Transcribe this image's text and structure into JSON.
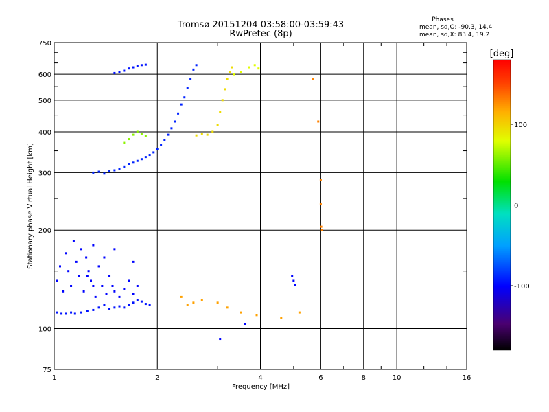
{
  "chart_data": {
    "type": "scatter",
    "title": "Tromsø 20151204 03:58:00-03:59:43",
    "subtitle": "RwPretec (8p)",
    "stats": {
      "heading": "Phases",
      "line_o": "mean, sd,O: -90.3, 14.4",
      "line_x": "mean, sd,X:  83.4, 19.2"
    },
    "xlabel": "Frequency [MHz]",
    "ylabel": "Stationary phase Virtual Height [km]",
    "x_scale": "log",
    "y_scale": "log",
    "xlim": [
      1,
      16
    ],
    "ylim": [
      75,
      750
    ],
    "x_ticks": [
      1,
      2,
      4,
      6,
      8,
      10,
      16
    ],
    "x_tick_labels": [
      "1",
      "2",
      "4",
      "6",
      "8",
      "10",
      "16"
    ],
    "y_ticks": [
      75,
      100,
      200,
      300,
      400,
      500,
      600,
      750
    ],
    "y_tick_labels": [
      "75",
      "100",
      "200",
      "300",
      "400",
      "500",
      "600",
      "750"
    ],
    "grid": true,
    "colorbar": {
      "label": "[deg]",
      "range": [
        -180,
        180
      ],
      "ticks": [
        100,
        0,
        -100
      ],
      "tick_labels": [
        "100",
        "0",
        "-100"
      ]
    },
    "series": [
      {
        "values": [
          [
            1.02,
            112
          ],
          [
            1.05,
            111
          ],
          [
            1.08,
            111
          ],
          [
            1.12,
            112
          ],
          [
            1.15,
            111
          ],
          [
            1.2,
            112
          ],
          [
            1.25,
            113
          ],
          [
            1.3,
            114
          ],
          [
            1.35,
            116
          ],
          [
            1.4,
            118
          ],
          [
            1.45,
            115
          ],
          [
            1.5,
            116
          ],
          [
            1.55,
            117
          ],
          [
            1.6,
            116
          ],
          [
            1.65,
            118
          ],
          [
            1.7,
            120
          ],
          [
            1.75,
            122
          ],
          [
            1.8,
            121
          ],
          [
            1.85,
            119
          ],
          [
            1.9,
            118
          ]
        ],
        "phase": -95
      },
      {
        "values": [
          [
            1.02,
            140
          ],
          [
            1.04,
            155
          ],
          [
            1.06,
            130
          ],
          [
            1.08,
            170
          ],
          [
            1.1,
            150
          ],
          [
            1.12,
            135
          ],
          [
            1.14,
            185
          ],
          [
            1.16,
            160
          ],
          [
            1.18,
            145
          ],
          [
            1.2,
            175
          ],
          [
            1.22,
            130
          ],
          [
            1.24,
            165
          ],
          [
            1.26,
            150
          ],
          [
            1.28,
            140
          ],
          [
            1.3,
            180
          ],
          [
            1.32,
            125
          ],
          [
            1.35,
            155
          ],
          [
            1.38,
            135
          ],
          [
            1.4,
            165
          ],
          [
            1.42,
            128
          ],
          [
            1.45,
            145
          ],
          [
            1.48,
            135
          ],
          [
            1.5,
            130
          ],
          [
            1.55,
            125
          ],
          [
            1.6,
            132
          ],
          [
            1.65,
            140
          ],
          [
            1.7,
            128
          ],
          [
            1.75,
            135
          ]
        ],
        "phase": -100
      },
      {
        "values": [
          [
            1.3,
            300
          ],
          [
            1.35,
            302
          ],
          [
            1.4,
            298
          ],
          [
            1.45,
            303
          ],
          [
            1.5,
            305
          ],
          [
            1.55,
            308
          ],
          [
            1.6,
            312
          ],
          [
            1.65,
            318
          ],
          [
            1.7,
            322
          ],
          [
            1.75,
            326
          ],
          [
            1.8,
            330
          ],
          [
            1.85,
            335
          ],
          [
            1.9,
            340
          ],
          [
            1.95,
            346
          ],
          [
            2.0,
            355
          ],
          [
            2.05,
            365
          ],
          [
            2.1,
            378
          ],
          [
            2.15,
            392
          ],
          [
            2.2,
            410
          ],
          [
            2.25,
            430
          ],
          [
            2.3,
            455
          ],
          [
            2.35,
            485
          ],
          [
            2.4,
            510
          ],
          [
            2.45,
            545
          ],
          [
            2.5,
            580
          ],
          [
            2.55,
            620
          ],
          [
            2.6,
            640
          ]
        ],
        "phase": -90
      },
      {
        "values": [
          [
            1.5,
            605
          ],
          [
            1.55,
            610
          ],
          [
            1.6,
            615
          ],
          [
            1.65,
            625
          ],
          [
            1.7,
            630
          ],
          [
            1.75,
            635
          ],
          [
            1.8,
            640
          ],
          [
            1.85,
            642
          ]
        ],
        "phase": -95
      },
      {
        "values": [
          [
            1.6,
            370
          ],
          [
            1.65,
            380
          ],
          [
            1.7,
            392
          ],
          [
            1.75,
            400
          ],
          [
            1.8,
            395
          ],
          [
            1.85,
            388
          ]
        ],
        "phase": 60
      },
      {
        "values": [
          [
            2.6,
            390
          ],
          [
            2.7,
            395
          ],
          [
            2.8,
            392
          ],
          [
            2.9,
            400
          ],
          [
            3.0,
            420
          ],
          [
            3.05,
            460
          ],
          [
            3.1,
            500
          ],
          [
            3.15,
            540
          ],
          [
            3.2,
            580
          ],
          [
            3.25,
            610
          ],
          [
            3.3,
            630
          ]
        ],
        "phase": 95
      },
      {
        "values": [
          [
            3.35,
            600
          ],
          [
            3.5,
            610
          ],
          [
            3.7,
            630
          ],
          [
            3.85,
            640
          ],
          [
            3.95,
            625
          ]
        ],
        "phase": 80
      },
      {
        "values": [
          [
            2.35,
            125
          ],
          [
            2.45,
            118
          ],
          [
            2.55,
            120
          ],
          [
            2.7,
            122
          ],
          [
            3.0,
            120
          ],
          [
            3.2,
            116
          ],
          [
            3.5,
            112
          ],
          [
            3.9,
            110
          ],
          [
            4.6,
            108
          ],
          [
            5.2,
            112
          ]
        ],
        "phase": 120
      },
      {
        "values": [
          [
            5.7,
            580
          ],
          [
            5.9,
            430
          ],
          [
            6.0,
            285
          ],
          [
            6.0,
            240
          ],
          [
            6.02,
            205
          ],
          [
            6.05,
            200
          ]
        ],
        "phase": 130
      },
      {
        "values": [
          [
            3.05,
            93
          ],
          [
            3.6,
            103
          ],
          [
            4.95,
            145
          ],
          [
            5.0,
            140
          ],
          [
            5.05,
            136
          ],
          [
            1.25,
            145
          ],
          [
            1.3,
            135
          ],
          [
            1.5,
            175
          ],
          [
            1.7,
            160
          ]
        ],
        "phase": -100
      }
    ]
  }
}
